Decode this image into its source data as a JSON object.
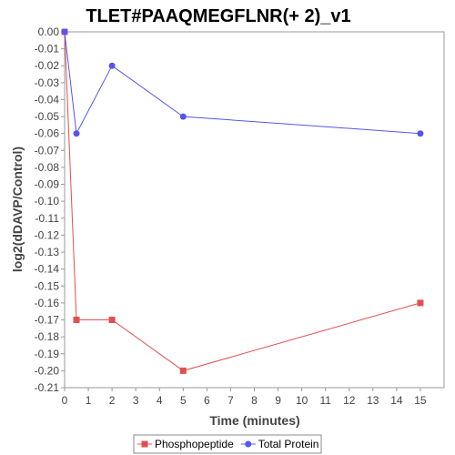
{
  "chart_data": {
    "type": "line",
    "title": "TLET#PAAQMEGFLNR(+ 2)_v1",
    "xlabel": "Time (minutes)",
    "ylabel": "log2(dDAVP/Control)",
    "xlim": [
      0,
      16
    ],
    "ylim": [
      -0.21,
      0.0
    ],
    "x_ticks": [
      0,
      1,
      2,
      3,
      4,
      5,
      6,
      7,
      8,
      9,
      10,
      11,
      12,
      13,
      14,
      15
    ],
    "x_tick_labels": [
      "0",
      "1",
      "2",
      "3",
      "4",
      "5",
      "6",
      "7",
      "8",
      "9",
      "10",
      "11",
      "12",
      "13",
      "14",
      "15"
    ],
    "y_ticks": [
      0.0,
      -0.01,
      -0.02,
      -0.03,
      -0.04,
      -0.05,
      -0.06,
      -0.07,
      -0.08,
      -0.09,
      -0.1,
      -0.11,
      -0.12,
      -0.13,
      -0.14,
      -0.15,
      -0.16,
      -0.17,
      -0.18,
      -0.19,
      -0.2,
      -0.21
    ],
    "y_tick_labels": [
      "0.00",
      "-0.01",
      "-0.02",
      "-0.03",
      "-0.04",
      "-0.05",
      "-0.06",
      "-0.07",
      "-0.08",
      "-0.09",
      "-0.10",
      "-0.11",
      "-0.12",
      "-0.13",
      "-0.14",
      "-0.15",
      "-0.16",
      "-0.17",
      "-0.18",
      "-0.19",
      "-0.20",
      "-0.21"
    ],
    "grid": false,
    "legend_position": "bottom",
    "series": [
      {
        "name": "Phosphopeptide",
        "color": "#e05050",
        "marker": "square",
        "x": [
          0,
          0.5,
          2,
          5,
          15
        ],
        "y": [
          0.0,
          -0.17,
          -0.17,
          -0.2,
          -0.16
        ]
      },
      {
        "name": "Total Protein",
        "color": "#5555ee",
        "marker": "circle",
        "x": [
          0,
          0.5,
          2,
          5,
          15
        ],
        "y": [
          0.0,
          -0.06,
          -0.02,
          -0.05,
          -0.06
        ]
      }
    ]
  }
}
